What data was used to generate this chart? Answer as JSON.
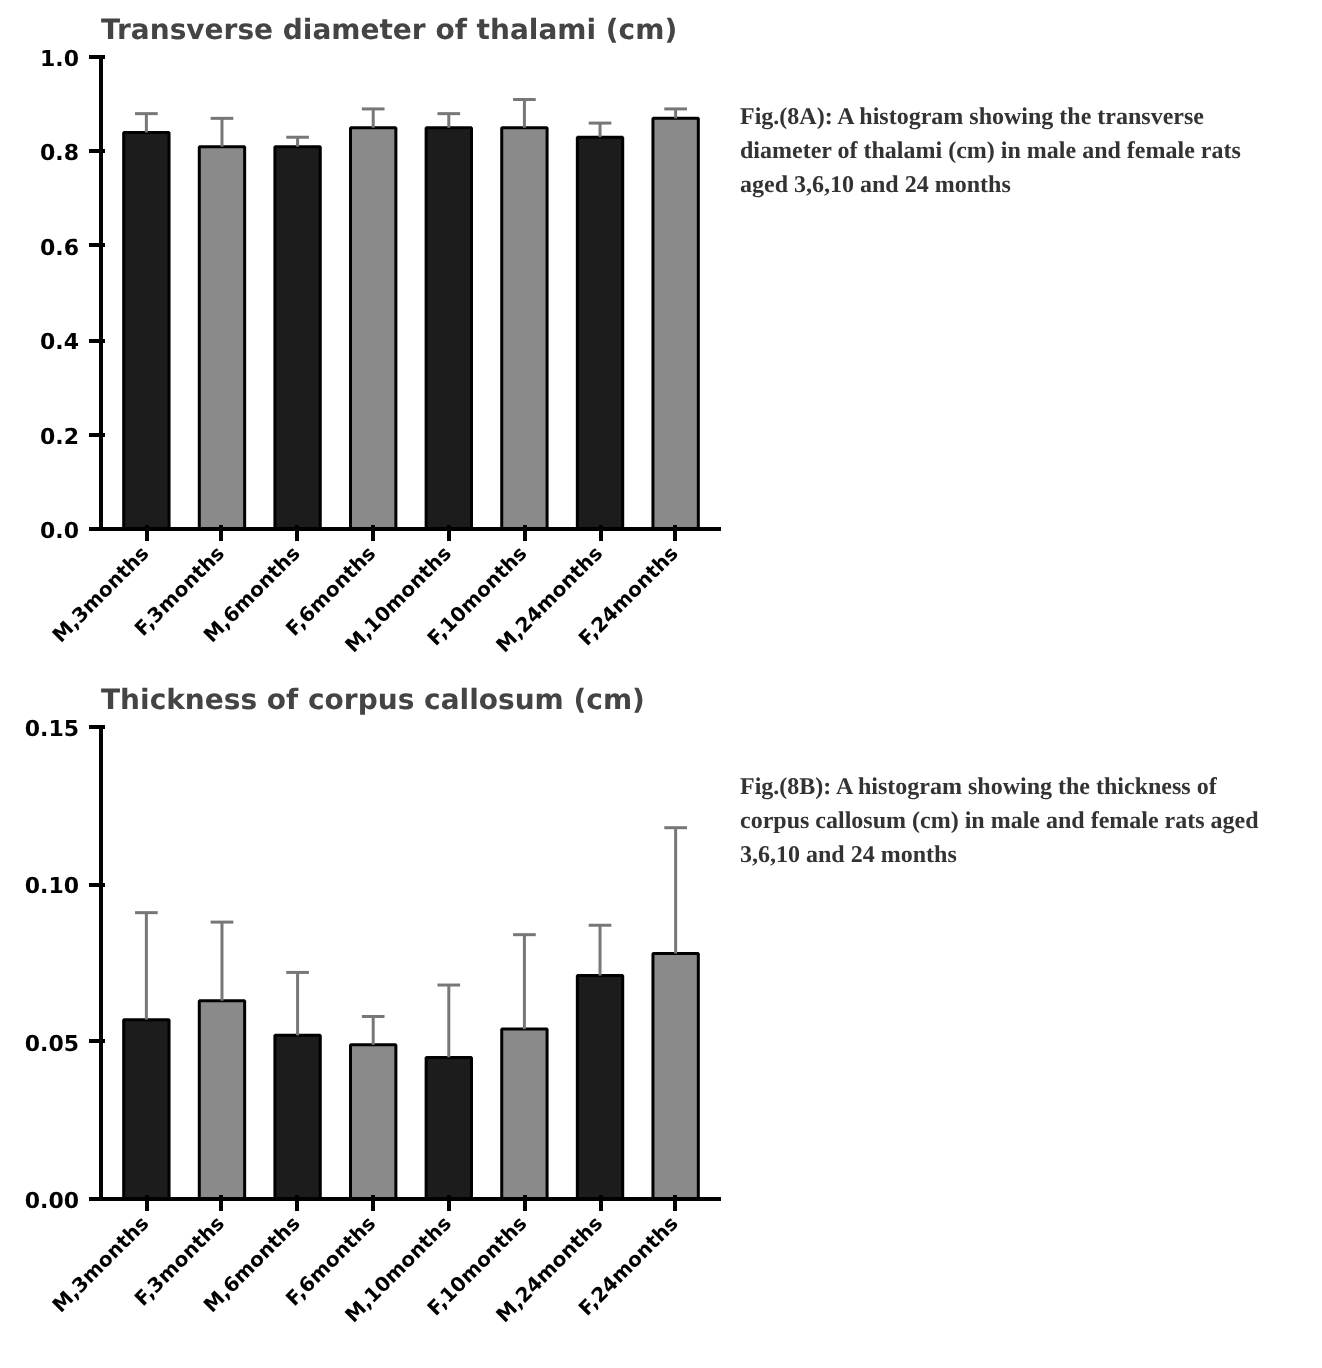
{
  "chart_data": [
    {
      "type": "bar",
      "title": "Transverse diameter of thalami (cm)",
      "categories": [
        "M,3months",
        "F,3months",
        "M,6months",
        "F,6months",
        "M,10months",
        "F,10months",
        "M,24months",
        "F,24months"
      ],
      "values": [
        0.84,
        0.81,
        0.81,
        0.85,
        0.85,
        0.85,
        0.83,
        0.87
      ],
      "errors": [
        [
          0.84,
          0.88
        ],
        [
          0.81,
          0.87
        ],
        [
          0.81,
          0.83
        ],
        [
          0.85,
          0.89
        ],
        [
          0.85,
          0.88
        ],
        [
          0.85,
          0.91
        ],
        [
          0.83,
          0.86
        ],
        [
          0.87,
          0.89
        ]
      ],
      "colors": [
        "#1c1c1c",
        "#8a8a8a",
        "#1c1c1c",
        "#8a8a8a",
        "#1c1c1c",
        "#8a8a8a",
        "#1c1c1c",
        "#8a8a8a"
      ],
      "ylim": [
        0,
        1.0
      ],
      "yticks": [
        {
          "value": 0,
          "label": "0.0"
        },
        0.2,
        0.4,
        0.6,
        0.8,
        {
          "value": 1.0,
          "label": "1.0"
        }
      ],
      "annotations": [
        "Fig.(8A): A histogram showing the transverse diameter of thalami (cm) in male and female rats aged 3,6,10 and 24 months"
      ]
    },
    {
      "type": "bar",
      "title": "Thickness of corpus callosum (cm)",
      "categories": [
        "M,3months",
        "F,3months",
        "M,6months",
        "F,6months",
        "M,10months",
        "F,10months",
        "M,24months",
        "F,24months"
      ],
      "values": [
        0.057,
        0.063,
        0.052,
        0.049,
        0.045,
        0.054,
        0.071,
        0.078
      ],
      "errors": [
        [
          0.057,
          0.091
        ],
        [
          0.063,
          0.088
        ],
        [
          0.052,
          0.072
        ],
        [
          0.049,
          0.058
        ],
        [
          0.045,
          0.068
        ],
        [
          0.054,
          0.084
        ],
        [
          0.071,
          0.087
        ],
        [
          0.078,
          0.118
        ]
      ],
      "colors": [
        "#1c1c1c",
        "#8a8a8a",
        "#1c1c1c",
        "#8a8a8a",
        "#1c1c1c",
        "#8a8a8a",
        "#1c1c1c",
        "#8a8a8a"
      ],
      "ylim": [
        0,
        0.15
      ],
      "yticks": [
        {
          "value": 0,
          "label": "0.00"
        },
        0.05,
        {
          "value": 0.1,
          "label": "0.10"
        },
        0.15
      ],
      "annotations": [
        "Fig.(8B): A histogram showing the thickness of corpus callosum (cm) in male and female rats aged 3,6,10 and 24 months"
      ]
    }
  ]
}
